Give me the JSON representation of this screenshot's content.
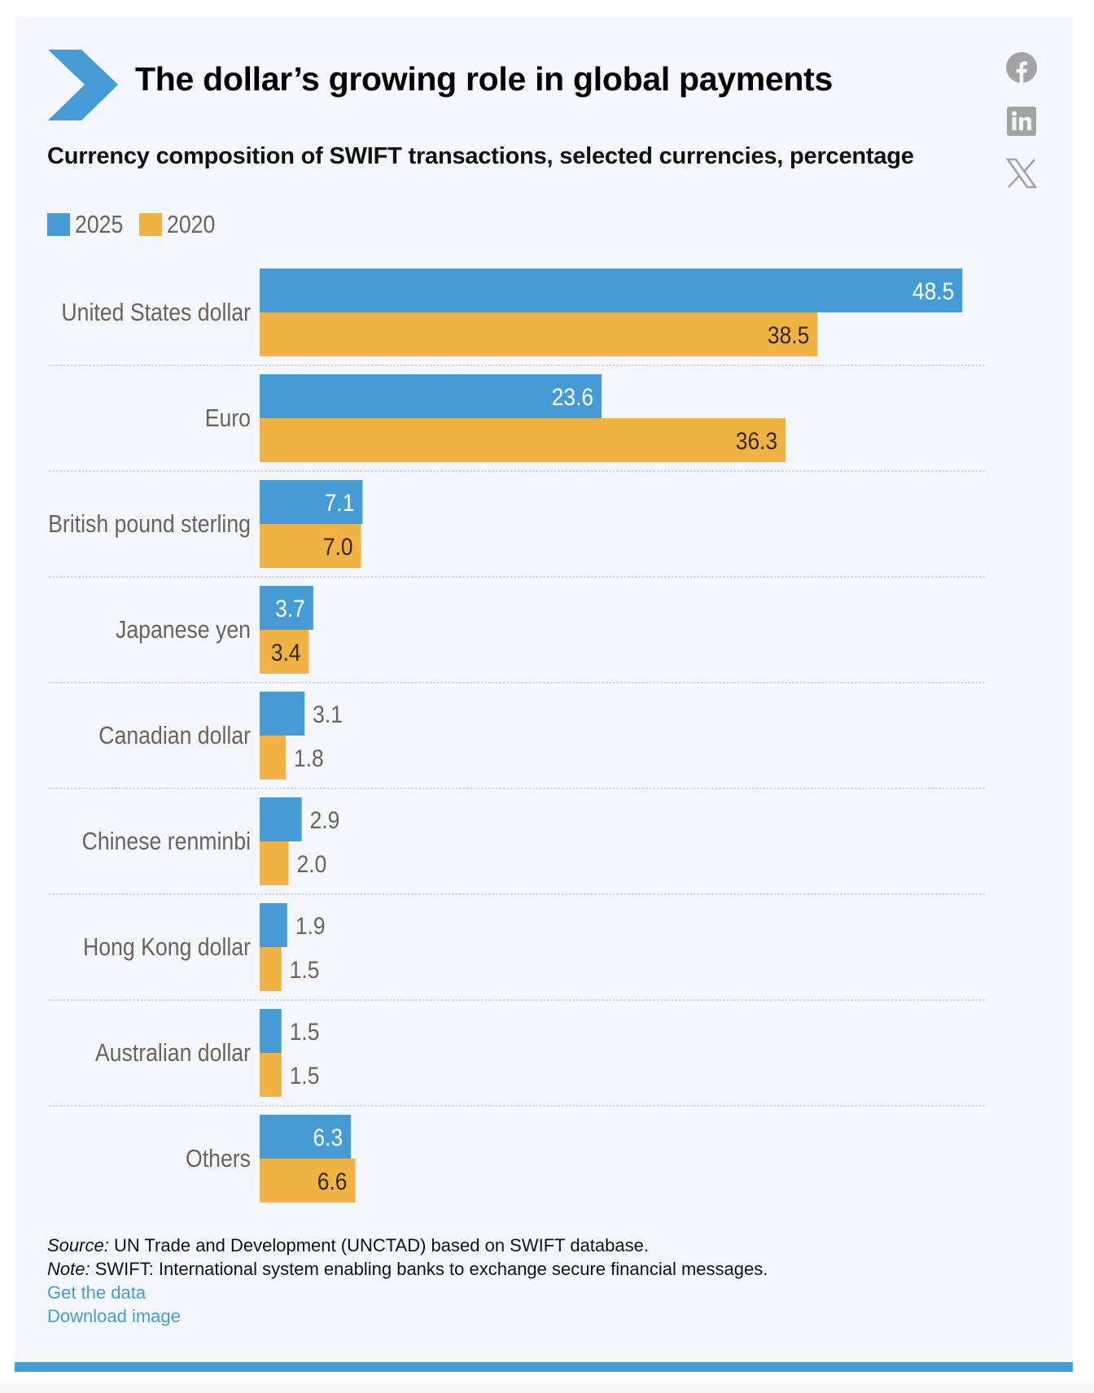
{
  "header": {
    "title": "The dollar’s growing role in global payments",
    "subtitle": "Currency composition of SWIFT transactions, selected currencies, percentage"
  },
  "share": {
    "icons": [
      "facebook-icon",
      "linkedin-icon",
      "x-icon"
    ]
  },
  "colors": {
    "accent": "#459bd6",
    "series_2025": "#459bd6",
    "series_2020": "#f0b243",
    "panel_bg": "#f3f7fc",
    "label_text": "#6b625b",
    "link": "#459bd6"
  },
  "legend": {
    "items": [
      {
        "label": "2025",
        "color": "#459bd6"
      },
      {
        "label": "2020",
        "color": "#f0b243"
      }
    ]
  },
  "chart_data": {
    "type": "bar",
    "orientation": "horizontal",
    "title": "The dollar’s growing role in global payments",
    "subtitle": "Currency composition of SWIFT transactions, selected currencies, percentage",
    "xlabel": "",
    "ylabel": "",
    "unit": "percentage",
    "grid": false,
    "legend_position": "top-left",
    "categories": [
      "United States dollar",
      "Euro",
      "British pound sterling",
      "Japanese yen",
      "Canadian dollar",
      "Chinese renminbi",
      "Hong Kong dollar",
      "Australian dollar",
      "Others"
    ],
    "series": [
      {
        "name": "2025",
        "color": "#459bd6",
        "values": [
          48.5,
          23.6,
          7.1,
          3.7,
          3.1,
          2.9,
          1.9,
          1.5,
          6.3
        ]
      },
      {
        "name": "2020",
        "color": "#f0b243",
        "values": [
          38.5,
          36.3,
          7.0,
          3.4,
          1.8,
          2.0,
          1.5,
          1.5,
          6.6
        ]
      }
    ],
    "data_labels": {
      "2025": [
        "48.5",
        "23.6",
        "7.1",
        "3.7",
        "3.1",
        "2.9",
        "1.9",
        "1.5",
        "6.3"
      ],
      "2020": [
        "38.5",
        "36.3",
        "7.0",
        "3.4",
        "1.8",
        "2.0",
        "1.5",
        "1.5",
        "6.6"
      ]
    },
    "xlim": [
      0,
      50
    ]
  },
  "footer": {
    "source_label": "Source:",
    "source_text": " UN Trade and Development (UNCTAD) based on SWIFT database.",
    "note_label": "Note:",
    "note_text": " SWIFT: International system enabling banks to exchange secure financial messages.",
    "links": [
      "Get the data",
      "Download image"
    ]
  }
}
